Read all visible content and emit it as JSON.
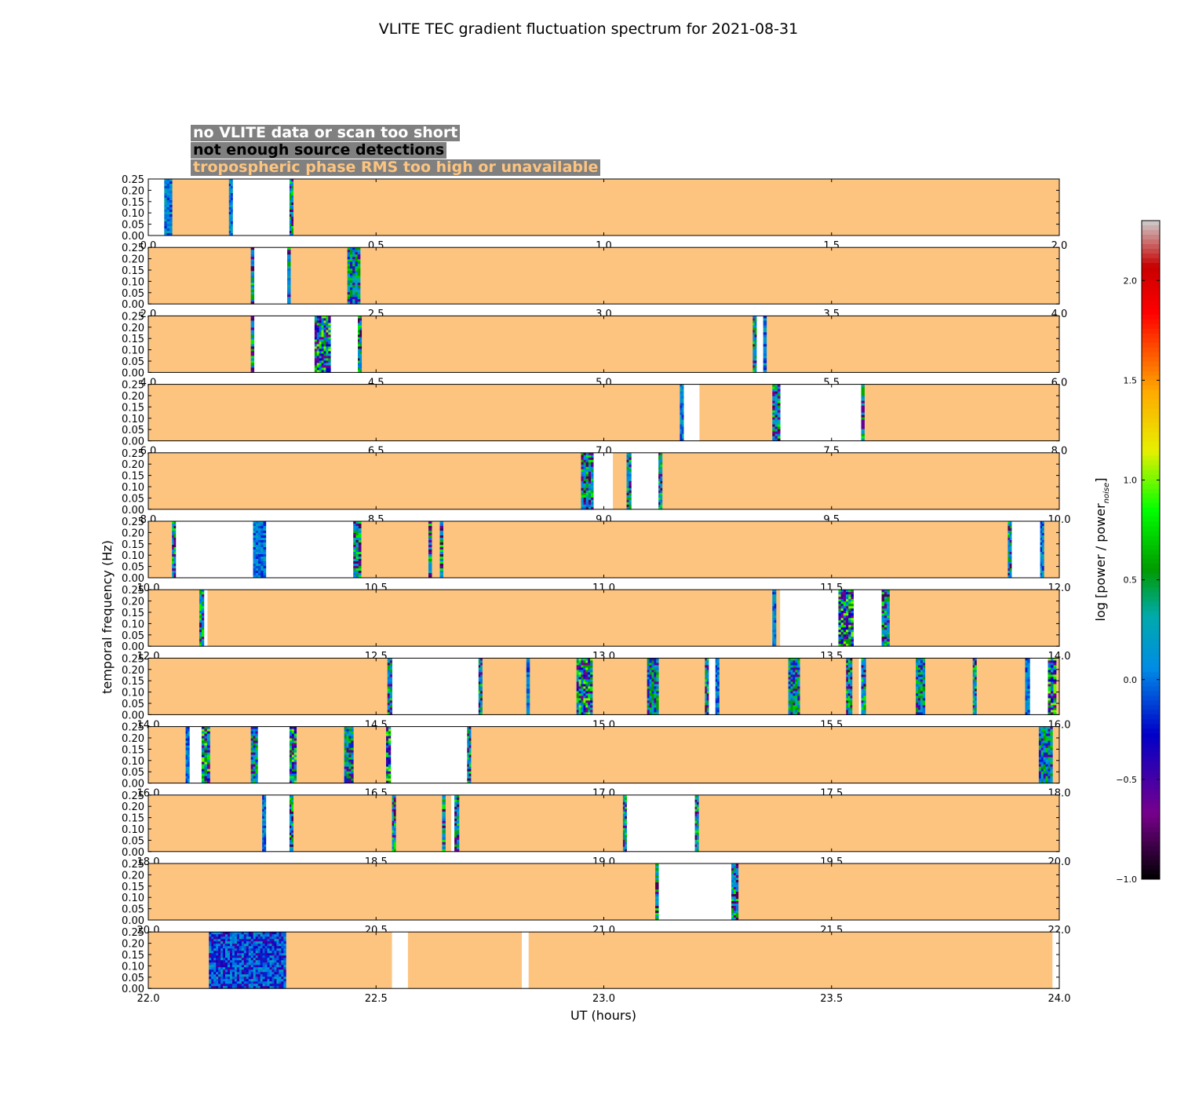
{
  "chart_data": {
    "type": "heatmap",
    "title": "VLITE TEC gradient fluctuation spectrum for 2021-08-31",
    "xlabel": "UT (hours)",
    "ylabel": "temporal frequency (Hz)",
    "ylim": [
      0,
      0.25
    ],
    "yticks": [
      "0.00",
      "0.05",
      "0.10",
      "0.15",
      "0.20",
      "0.25"
    ],
    "colorbar": {
      "label": "log [power / power",
      "label_sub": "noise",
      "label_end": "]",
      "range": [
        -1.0,
        2.3
      ],
      "ticks": [
        -1.0,
        -0.5,
        0.0,
        0.5,
        1.0,
        1.5,
        2.0
      ],
      "tick_labels": [
        "−1.0",
        "−0.5",
        "0.0",
        "0.5",
        "1.0",
        "1.5",
        "2.0"
      ]
    },
    "colors": {
      "no_data": "#ffffff",
      "few_detections": "#000000",
      "trop_rms_high": "#fdc47f",
      "legend_bg": "#808080"
    },
    "legend": [
      {
        "label": "no VLITE data or scan too short",
        "category": "no_data"
      },
      {
        "label": "not enough source detections",
        "category": "few_detections"
      },
      {
        "label": "tropospheric phase RMS too high or unavailable",
        "category": "trop_rms_high"
      }
    ],
    "panels": [
      {
        "x_range": [
          0,
          2
        ],
        "ticks": [
          "0.0",
          "0.5",
          "1.0",
          "1.5",
          "2.0"
        ],
        "gaps": [
          [
            0,
            0.035
          ],
          [
            0.18,
            0.31
          ]
        ],
        "spectra": [
          [
            0.035,
            0.052,
            0
          ],
          [
            0.177,
            0.185,
            0
          ],
          [
            0.31,
            0.318,
            1
          ]
        ]
      },
      {
        "x_range": [
          2,
          4
        ],
        "ticks": [
          "2.0",
          "2.5",
          "3.0",
          "3.5",
          "4.0"
        ],
        "gaps": [
          [
            2.232,
            2.305
          ]
        ],
        "spectra": [
          [
            2.225,
            2.232,
            1
          ],
          [
            2.305,
            2.312,
            1
          ],
          [
            2.437,
            2.465,
            2
          ]
        ]
      },
      {
        "x_range": [
          4,
          6
        ],
        "ticks": [
          "4.0",
          "4.5",
          "5.0",
          "5.5",
          "6.0"
        ],
        "gaps": [
          [
            4.232,
            4.365
          ],
          [
            4.4,
            4.46
          ],
          [
            5.335,
            5.35
          ]
        ],
        "spectra": [
          [
            4.225,
            4.232,
            1
          ],
          [
            4.365,
            4.4,
            3
          ],
          [
            4.46,
            4.468,
            1
          ],
          [
            5.327,
            5.335,
            1
          ],
          [
            5.35,
            5.357,
            0
          ]
        ]
      },
      {
        "x_range": [
          6,
          8
        ],
        "ticks": [
          "6.0",
          "6.5",
          "7.0",
          "7.5",
          "8.0"
        ],
        "gaps": [
          [
            7.175,
            7.21
          ],
          [
            7.387,
            7.565
          ]
        ],
        "spectra": [
          [
            7.167,
            7.175,
            0
          ],
          [
            7.37,
            7.387,
            1
          ],
          [
            7.565,
            7.572,
            1
          ]
        ]
      },
      {
        "x_range": [
          8,
          10
        ],
        "ticks": [
          "8.0",
          "8.5",
          "9.0",
          "9.5",
          "10.0"
        ],
        "gaps": [
          [
            8.977,
            9.02
          ],
          [
            9.06,
            9.12
          ]
        ],
        "spectra": [
          [
            8.95,
            8.977,
            1
          ],
          [
            9.05,
            9.06,
            1
          ],
          [
            9.12,
            9.128,
            1
          ]
        ]
      },
      {
        "x_range": [
          10,
          12
        ],
        "ticks": [
          "10.0",
          "10.5",
          "11.0",
          "11.5",
          "12.0"
        ],
        "gaps": [
          [
            10.06,
            10.23
          ],
          [
            10.258,
            10.45
          ],
          [
            11.895,
            11.958
          ]
        ],
        "spectra": [
          [
            10.052,
            10.06,
            1
          ],
          [
            10.23,
            10.258,
            0
          ],
          [
            10.45,
            10.467,
            1
          ],
          [
            10.615,
            10.622,
            1
          ],
          [
            10.64,
            10.647,
            1
          ],
          [
            11.887,
            11.895,
            1
          ],
          [
            11.958,
            11.966,
            0
          ]
        ]
      },
      {
        "x_range": [
          12,
          14
        ],
        "ticks": [
          "12.0",
          "12.5",
          "13.0",
          "13.5",
          "14.0"
        ],
        "gaps": [
          [
            12.122,
            12.13
          ],
          [
            13.387,
            13.515
          ],
          [
            13.548,
            13.61
          ]
        ],
        "spectra": [
          [
            12.112,
            12.122,
            1
          ],
          [
            13.37,
            13.378,
            0
          ],
          [
            13.515,
            13.548,
            3
          ],
          [
            13.61,
            13.627,
            1
          ]
        ]
      },
      {
        "x_range": [
          14,
          16
        ],
        "ticks": [
          "14.0",
          "14.5",
          "15.0",
          "15.5",
          "16.0"
        ],
        "gaps": [
          [
            14.535,
            14.725
          ],
          [
            15.23,
            15.245
          ],
          [
            15.56,
            15.565
          ],
          [
            15.935,
            15.975
          ]
        ],
        "spectra": [
          [
            14.525,
            14.535,
            1
          ],
          [
            14.725,
            14.733,
            1
          ],
          [
            14.83,
            14.837,
            0
          ],
          [
            14.94,
            14.975,
            3
          ],
          [
            15.095,
            15.12,
            2
          ],
          [
            15.222,
            15.23,
            1
          ],
          [
            15.245,
            15.253,
            0
          ],
          [
            15.405,
            15.43,
            2
          ],
          [
            15.532,
            15.545,
            1
          ],
          [
            15.565,
            15.575,
            1
          ],
          [
            15.685,
            15.705,
            2
          ],
          [
            15.81,
            15.818,
            1
          ],
          [
            15.925,
            15.935,
            0
          ],
          [
            15.975,
            15.993,
            3
          ]
        ]
      },
      {
        "x_range": [
          16,
          18
        ],
        "ticks": [
          "16.0",
          "16.5",
          "17.0",
          "17.5",
          "18.0"
        ],
        "gaps": [
          [
            16.09,
            16.117
          ],
          [
            16.24,
            16.31
          ],
          [
            16.532,
            16.7
          ]
        ],
        "spectra": [
          [
            16.082,
            16.09,
            0
          ],
          [
            16.117,
            16.135,
            3
          ],
          [
            16.225,
            16.24,
            2
          ],
          [
            16.31,
            16.325,
            3
          ],
          [
            16.43,
            16.45,
            2
          ],
          [
            16.522,
            16.532,
            3
          ],
          [
            16.7,
            16.708,
            1
          ],
          [
            17.955,
            17.985,
            2
          ]
        ]
      },
      {
        "x_range": [
          18,
          20
        ],
        "ticks": [
          "18.0",
          "18.5",
          "19.0",
          "19.5",
          "20.0"
        ],
        "gaps": [
          [
            18.258,
            18.31
          ],
          [
            18.665,
            18.672
          ],
          [
            19.05,
            19.2
          ]
        ],
        "spectra": [
          [
            18.25,
            18.258,
            0
          ],
          [
            18.31,
            18.318,
            1
          ],
          [
            18.535,
            18.543,
            1
          ],
          [
            18.645,
            18.652,
            1
          ],
          [
            18.672,
            18.682,
            1
          ],
          [
            19.042,
            19.05,
            1
          ],
          [
            19.2,
            19.208,
            1
          ]
        ]
      },
      {
        "x_range": [
          20,
          22
        ],
        "ticks": [
          "20.0",
          "20.5",
          "21.0",
          "21.5",
          "22.0"
        ],
        "gaps": [
          [
            21.12,
            21.28
          ]
        ],
        "spectra": [
          [
            21.113,
            21.12,
            1
          ],
          [
            21.28,
            21.295,
            1
          ]
        ]
      },
      {
        "x_range": [
          22,
          24
        ],
        "ticks": [
          "22.0",
          "22.5",
          "23.0",
          "23.5",
          "24.0"
        ],
        "gaps": [
          [
            22.535,
            22.57
          ],
          [
            22.82,
            22.835
          ],
          [
            23.985,
            24.0
          ]
        ],
        "spectra": [
          [
            22.133,
            22.302,
            4
          ]
        ]
      }
    ]
  }
}
